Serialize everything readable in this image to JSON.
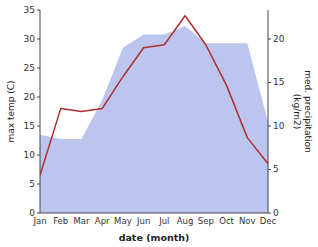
{
  "chart_data": {
    "type": "line",
    "categories": [
      "Jan",
      "Feb",
      "Mar",
      "Apr",
      "May",
      "Jun",
      "Jul",
      "Aug",
      "Sep",
      "Oct",
      "Nov",
      "Dec"
    ],
    "series": [
      {
        "type": "area",
        "axis": "y2",
        "color": "#bcc5ee",
        "values": [
          9.0,
          8.5,
          8.5,
          13.0,
          19.0,
          20.5,
          20.5,
          21.5,
          19.5,
          19.5,
          19.5,
          10.5
        ]
      },
      {
        "type": "line",
        "color": "#b03030",
        "values": [
          6.5,
          18.0,
          17.5,
          18.0,
          23.5,
          28.5,
          29.0,
          34.0,
          29.0,
          22.0,
          13.0,
          8.5
        ]
      }
    ],
    "x_label": "date (month)",
    "y_label": "max temp (C)",
    "y2_label": "med. precipitation\n(kg/m2)",
    "ylim": [
      0,
      35
    ],
    "yticks": [
      0,
      5,
      10,
      15,
      20,
      25,
      30,
      35
    ],
    "y2lim": [
      0,
      23.33
    ],
    "y2ticks": [
      0,
      5,
      10,
      15,
      20
    ],
    "grid": false
  }
}
